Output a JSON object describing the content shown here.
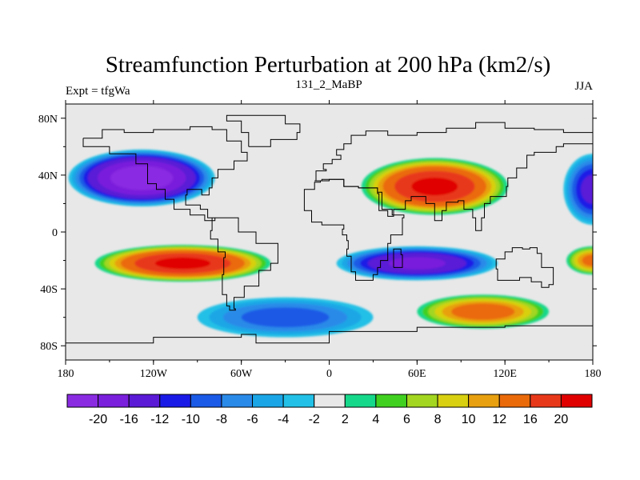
{
  "chart_data": {
    "type": "heatmap",
    "subtype": "filled-contour-map",
    "title": "Streamfunction Perturbation at 200 hPa (km2/s)",
    "left_label": "Expt = tfgWa",
    "center_label": "131_2_MaBP",
    "right_label": "JJA",
    "x_ticks": [
      "180",
      "120W",
      "60W",
      "0",
      "60E",
      "120E",
      "180"
    ],
    "x_tick_values": [
      -180,
      -120,
      -60,
      0,
      60,
      120,
      180
    ],
    "y_ticks": [
      "80N",
      "40N",
      "0",
      "40S",
      "80S"
    ],
    "y_tick_values": [
      80,
      40,
      0,
      -40,
      -80
    ],
    "xlim": [
      -180,
      180
    ],
    "ylim": [
      -90,
      90
    ],
    "colorbar_labels": [
      "-20",
      "-16",
      "-12",
      "-10",
      "-8",
      "-6",
      "-4",
      "-2",
      "2",
      "4",
      "6",
      "8",
      "10",
      "12",
      "16",
      "20"
    ],
    "colorbar_colors": [
      "#8a2be2",
      "#7a1fdc",
      "#5a1ad6",
      "#1a1ae6",
      "#1a5ae6",
      "#2a8ae8",
      "#1aa6e6",
      "#22c0e6",
      "#e8e8e8",
      "#16d88a",
      "#40d020",
      "#a2d620",
      "#d8d010",
      "#e8a010",
      "#ea6a0a",
      "#e8381a",
      "#e00000"
    ],
    "features": [
      {
        "name": "north-pacific-low",
        "lon": -128,
        "lat": 38,
        "value": -22,
        "rx": 50,
        "ry": 20
      },
      {
        "name": "central-asia-high",
        "lon": 72,
        "lat": 32,
        "value": 20,
        "rx": 50,
        "ry": 20
      },
      {
        "name": "south-pacific-high",
        "lon": -100,
        "lat": -22,
        "value": 20,
        "rx": 60,
        "ry": 13
      },
      {
        "name": "indian-ocean-low",
        "lon": 60,
        "lat": -22,
        "value": -16,
        "rx": 55,
        "ry": 12
      },
      {
        "name": "southern-atlantic-low",
        "lon": -30,
        "lat": -60,
        "value": -8,
        "rx": 60,
        "ry": 14
      },
      {
        "name": "australia-south-high",
        "lon": 105,
        "lat": -56,
        "value": 13,
        "rx": 45,
        "ry": 12
      },
      {
        "name": "west-pacific-low",
        "lon": 180,
        "lat": 30,
        "value": -12,
        "rx": 20,
        "ry": 25
      },
      {
        "name": "west-pacific-south-high",
        "lon": 180,
        "lat": -20,
        "value": 12,
        "rx": 18,
        "ry": 10
      }
    ]
  }
}
